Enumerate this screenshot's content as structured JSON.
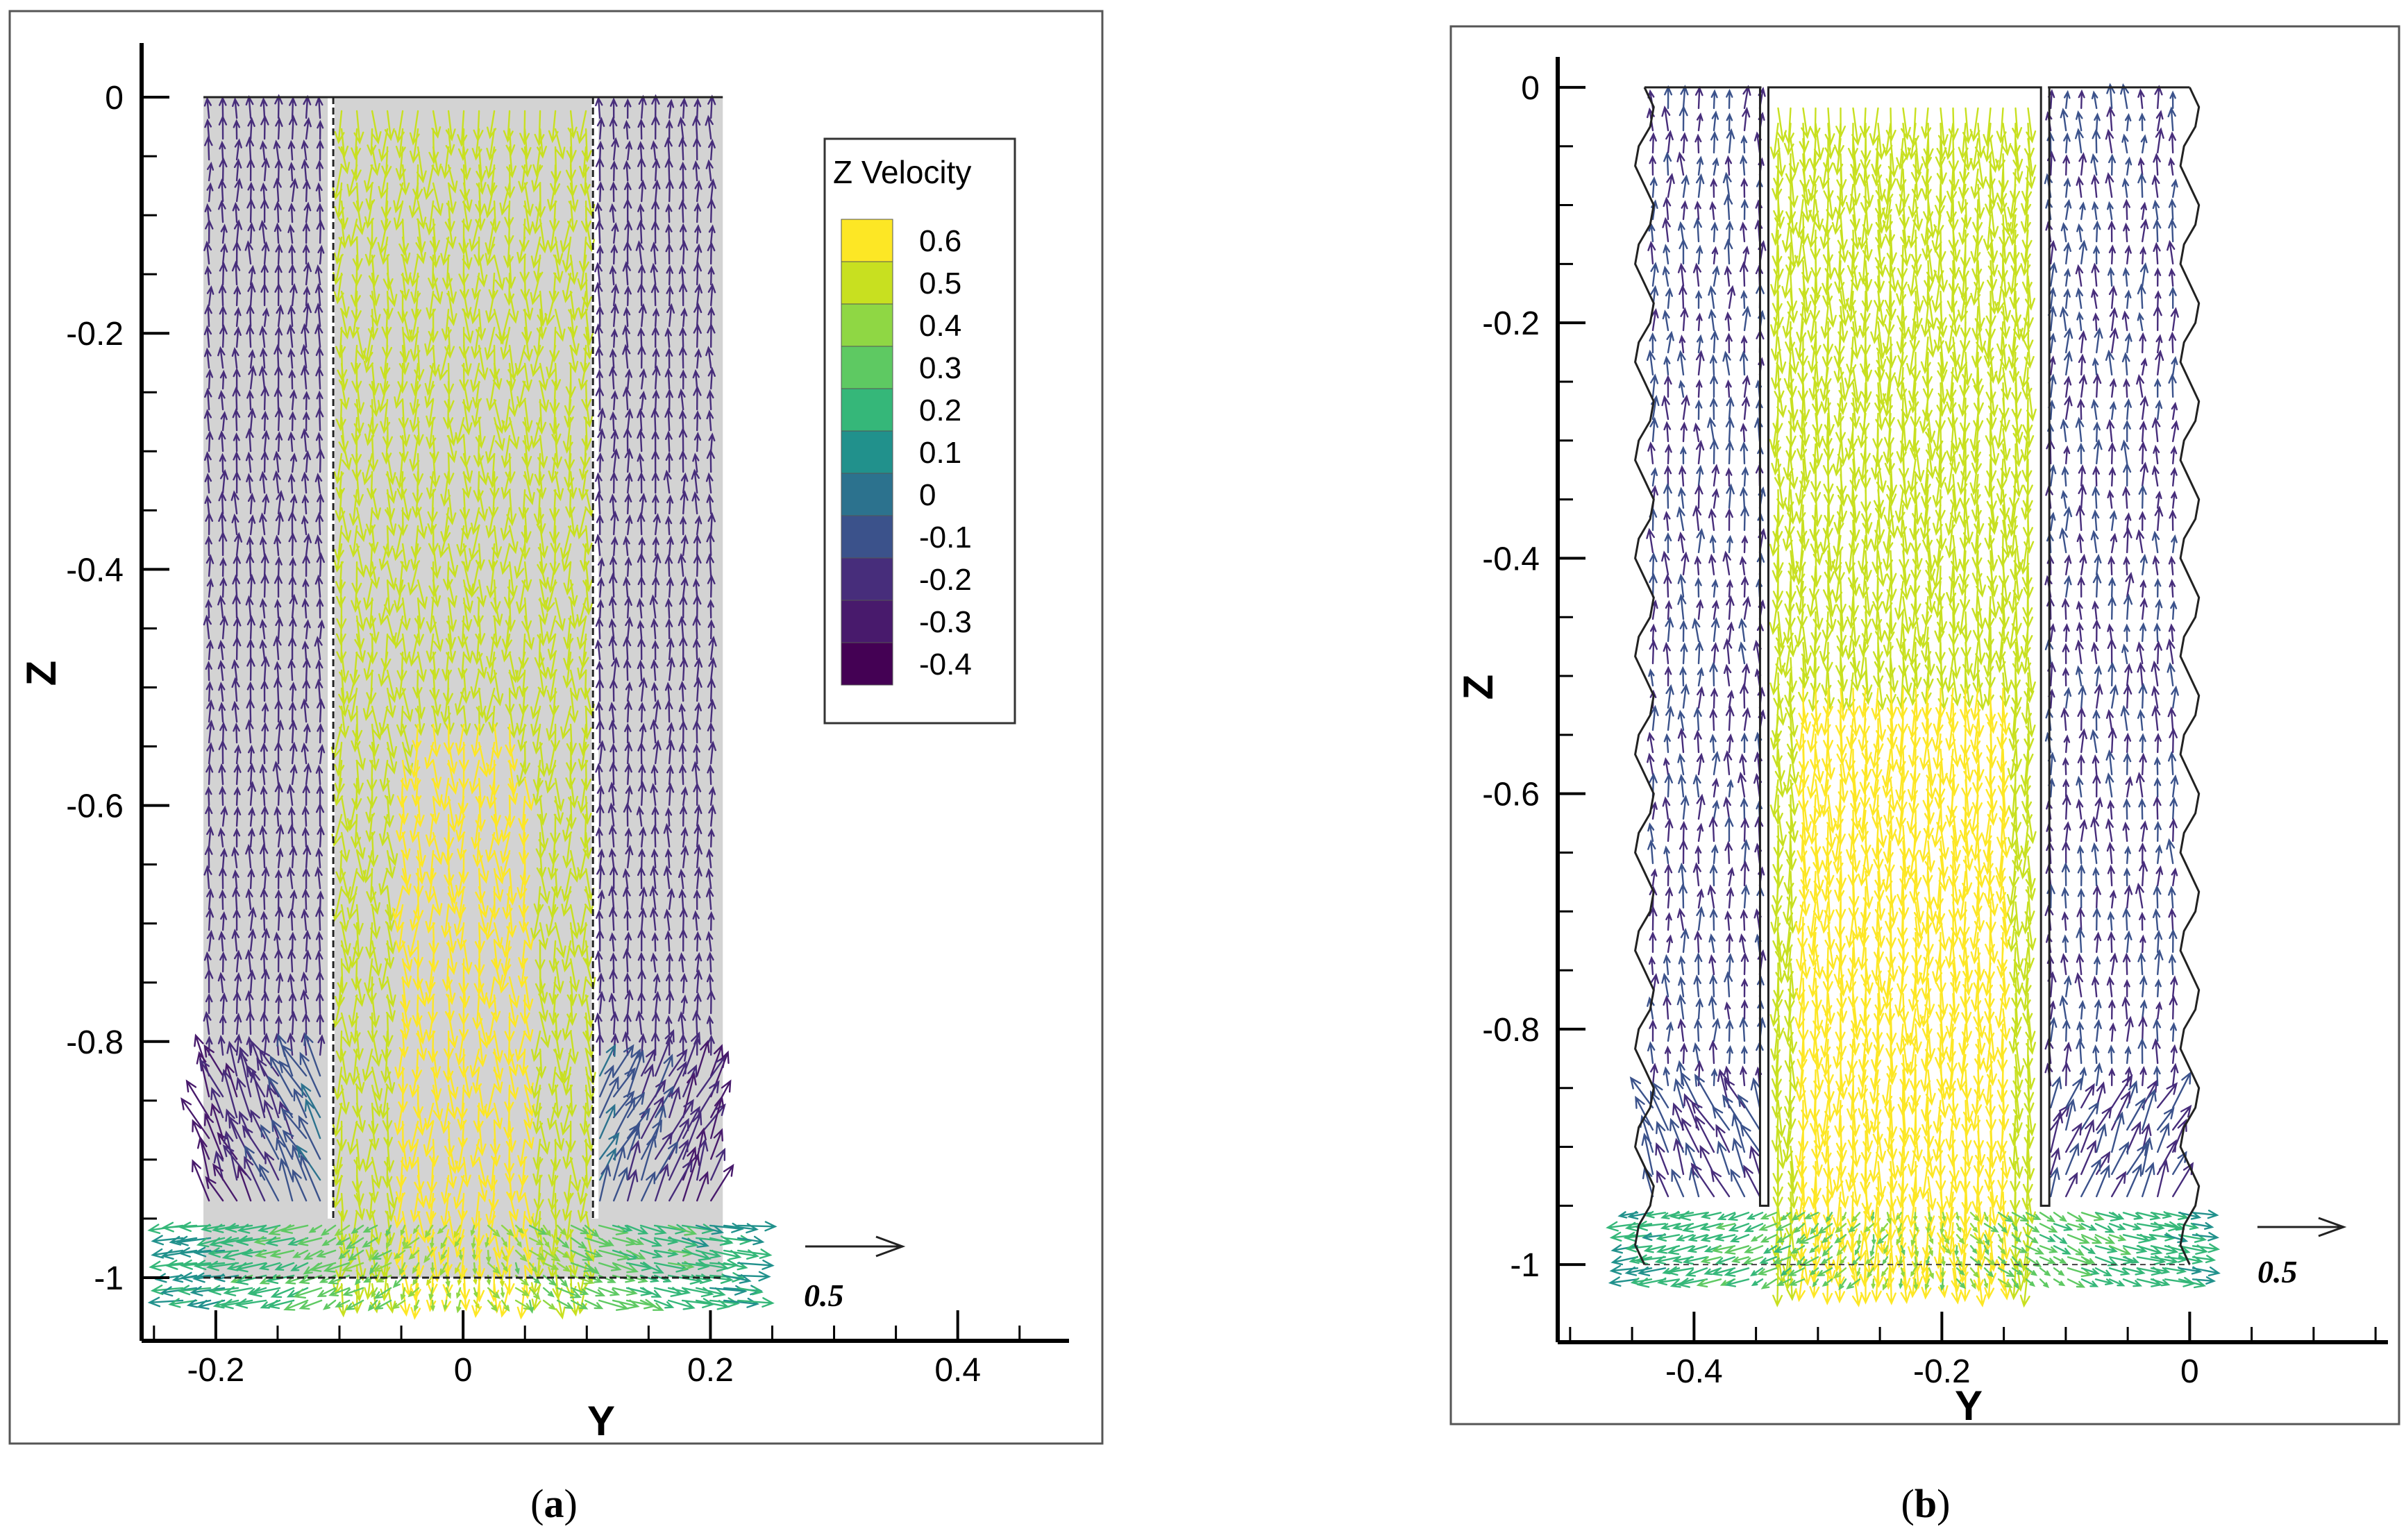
{
  "chart_data": [
    {
      "type": "vector-field",
      "panel": "a",
      "caption": {
        "open": "(",
        "letter": "a",
        "close": ")"
      },
      "xlabel": "Y",
      "ylabel": "Z",
      "xlim": [
        -0.26,
        0.49
      ],
      "ylim": [
        -1.05,
        0.04
      ],
      "xticks": [
        {
          "v": -0.2,
          "label": "-0.2"
        },
        {
          "v": 0,
          "label": "0"
        },
        {
          "v": 0.2,
          "label": "0.2"
        },
        {
          "v": 0.4,
          "label": "0.4"
        }
      ],
      "yticks": [
        {
          "v": 0,
          "label": "0"
        },
        {
          "v": -0.2,
          "label": "-0.2"
        },
        {
          "v": -0.4,
          "label": "-0.4"
        },
        {
          "v": -0.6,
          "label": "-0.6"
        },
        {
          "v": -0.8,
          "label": "-0.8"
        },
        {
          "v": -1,
          "label": "-1"
        }
      ],
      "geometry": {
        "outer_wall_y": [
          -0.21,
          0.21
        ],
        "inner_tube_y": [
          -0.105,
          0.105
        ],
        "inner_tube_bottom_z": -0.95,
        "wall_shape": "straight"
      },
      "reference_vector": {
        "magnitude": 0.5,
        "label": "0.5"
      },
      "flow": {
        "annulus_velocity_z": -0.2,
        "core_velocity_z": 0.5,
        "core_peak_velocity_z": 0.6,
        "peak_region_z": [
          -0.95,
          -0.52
        ]
      },
      "legend": {
        "title": "Z Velocity",
        "levels": [
          {
            "label": "0.6",
            "color": "#fde725"
          },
          {
            "label": "0.5",
            "color": "#c8e020"
          },
          {
            "label": "0.4",
            "color": "#8fd744"
          },
          {
            "label": "0.3",
            "color": "#5ec962"
          },
          {
            "label": "0.2",
            "color": "#35b779"
          },
          {
            "label": "0.1",
            "color": "#21918c"
          },
          {
            "label": "0",
            "color": "#2c728e"
          },
          {
            "label": "-0.1",
            "color": "#3b528b"
          },
          {
            "label": "-0.2",
            "color": "#472d7b"
          },
          {
            "label": "-0.3",
            "color": "#481a6c"
          },
          {
            "label": "-0.4",
            "color": "#440154"
          }
        ]
      }
    },
    {
      "type": "vector-field",
      "panel": "b",
      "caption": {
        "open": "(",
        "letter": "b",
        "close": ")"
      },
      "xlabel": "Y",
      "ylabel": "Z",
      "xlim": [
        -0.51,
        0.16
      ],
      "ylim": [
        -1.04,
        0.02
      ],
      "xticks": [
        {
          "v": -0.4,
          "label": "-0.4"
        },
        {
          "v": -0.2,
          "label": "-0.2"
        },
        {
          "v": 0,
          "label": "0"
        }
      ],
      "yticks": [
        {
          "v": 0,
          "label": "0"
        },
        {
          "v": -0.2,
          "label": "-0.2"
        },
        {
          "v": -0.4,
          "label": "-0.4"
        },
        {
          "v": -0.6,
          "label": "-0.6"
        },
        {
          "v": -0.8,
          "label": "-0.8"
        },
        {
          "v": -1,
          "label": "-1"
        }
      ],
      "geometry": {
        "outer_wall_y": [
          -0.44,
          0
        ],
        "inner_tube_y": [
          -0.34,
          -0.12
        ],
        "inner_tube_bottom_z": -0.95,
        "wall_shape": "wavy"
      },
      "reference_vector": {
        "magnitude": 0.5,
        "label": "0.5"
      },
      "flow": {
        "annulus_velocity_z": -0.15,
        "core_velocity_z": 0.5,
        "core_peak_velocity_z": 0.6,
        "peak_region_z": [
          -0.95,
          -0.5
        ]
      }
    }
  ]
}
